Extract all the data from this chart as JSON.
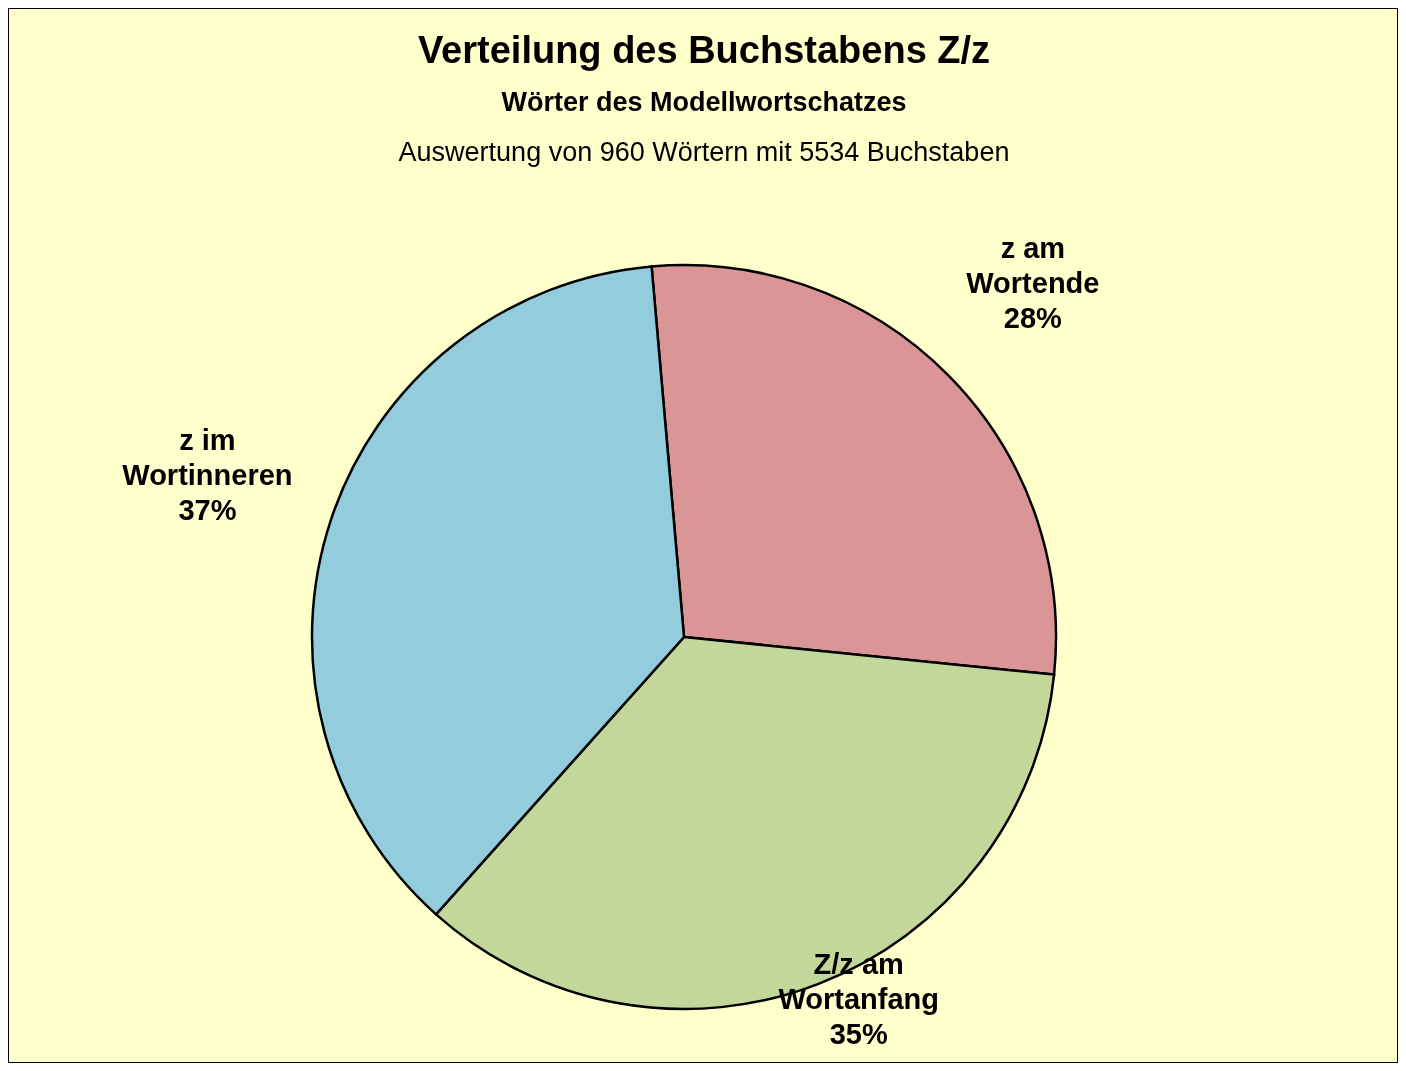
{
  "chart_data": {
    "type": "pie",
    "title": "Verteilung des Buchstabens Z/z",
    "subtitle": "Wörter des Modellwortschatzes",
    "annotations": [
      "Auswertung von 960 Wörtern mit 5534 Buchstaben"
    ],
    "categories": [
      "z am Wortende",
      "Z/z am Wortanfang",
      "z im Wortinneren"
    ],
    "values": [
      28,
      35,
      37
    ],
    "value_labels": [
      "28%",
      "35%",
      "37%"
    ],
    "colors": [
      "#da9696",
      "#c4d79b",
      "#93cddd"
    ]
  }
}
